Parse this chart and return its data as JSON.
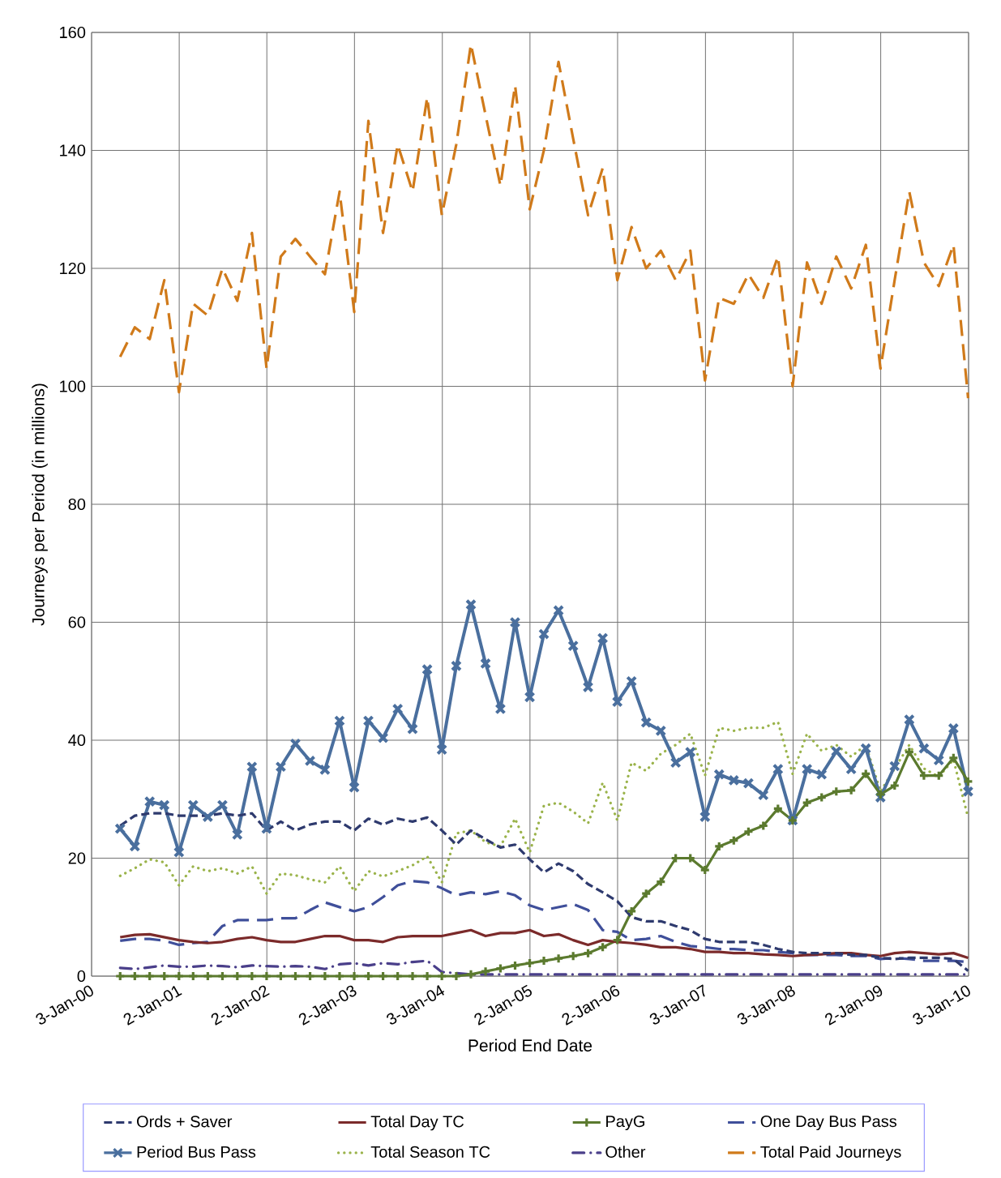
{
  "chart_data": {
    "type": "line",
    "xlabel": "Period End Date",
    "ylabel": "Journeys per Period (in millions)",
    "x": [
      "2000-05",
      "2000-07",
      "2000-09",
      "2000-11",
      "2001-01",
      "2001-03",
      "2001-05",
      "2001-07",
      "2001-09",
      "2001-11",
      "2002-01",
      "2002-03",
      "2002-05",
      "2002-07",
      "2002-09",
      "2002-11",
      "2003-01",
      "2003-03",
      "2003-05",
      "2003-07",
      "2003-09",
      "2003-11",
      "2004-01",
      "2004-03",
      "2004-05",
      "2004-07",
      "2004-09",
      "2004-11",
      "2005-01",
      "2005-03",
      "2005-05",
      "2005-07",
      "2005-09",
      "2005-11",
      "2006-01",
      "2006-03",
      "2006-05",
      "2006-07",
      "2006-09",
      "2006-11",
      "2007-01",
      "2007-03",
      "2007-05",
      "2007-07",
      "2007-09",
      "2007-11",
      "2008-01",
      "2008-03",
      "2008-05",
      "2008-07",
      "2008-09",
      "2008-11",
      "2009-01",
      "2009-03",
      "2009-05",
      "2009-07",
      "2009-09",
      "2009-11",
      "2010-01"
    ],
    "xlim": [
      "2000-01-03",
      "2010-01-03"
    ],
    "xticks": [
      {
        "value": "2000-01-03",
        "label": "3-Jan-00"
      },
      {
        "value": "2001-01-02",
        "label": "2-Jan-01"
      },
      {
        "value": "2002-01-02",
        "label": "2-Jan-02"
      },
      {
        "value": "2003-01-02",
        "label": "2-Jan-03"
      },
      {
        "value": "2004-01-03",
        "label": "3-Jan-04"
      },
      {
        "value": "2005-01-02",
        "label": "2-Jan-05"
      },
      {
        "value": "2006-01-02",
        "label": "2-Jan-06"
      },
      {
        "value": "2007-01-03",
        "label": "3-Jan-07"
      },
      {
        "value": "2008-01-03",
        "label": "3-Jan-08"
      },
      {
        "value": "2009-01-02",
        "label": "2-Jan-09"
      },
      {
        "value": "2010-01-03",
        "label": "3-Jan-10"
      }
    ],
    "ylim": [
      0,
      160
    ],
    "yticks": [
      0,
      20,
      40,
      60,
      80,
      100,
      120,
      140,
      160
    ],
    "grid": true,
    "legend": "bottom",
    "series": [
      {
        "name": "Ords + Saver",
        "color": "#2e3a6e",
        "line_style": "dashed",
        "marker": "none",
        "values": [
          25.5,
          27.2,
          27.6,
          27.6,
          27.2,
          27.2,
          27.2,
          27.6,
          27.2,
          27.6,
          24.7,
          26.2,
          24.7,
          25.7,
          26.2,
          26.2,
          24.7,
          26.7,
          25.7,
          26.7,
          26.2,
          26.9,
          24.7,
          22.3,
          24.7,
          23.2,
          21.8,
          22.3,
          19.8,
          17.6,
          19.1,
          17.8,
          15.6,
          14.2,
          12.7,
          10,
          9.3,
          9.3,
          8.5,
          7.8,
          6.3,
          5.8,
          5.8,
          5.8,
          5.3,
          4.6,
          4.1,
          3.9,
          3.9,
          3.9,
          3.6,
          3.6,
          3.1,
          2.9,
          3.1,
          3.1,
          3.1,
          2.9,
          0.9
        ]
      },
      {
        "name": "Total Day TC",
        "color": "#7b2a2a",
        "line_style": "solid",
        "marker": "none",
        "values": [
          6.6,
          7,
          7.1,
          6.6,
          6.1,
          5.8,
          5.6,
          5.8,
          6.3,
          6.6,
          6.1,
          5.8,
          5.8,
          6.3,
          6.8,
          6.8,
          6.1,
          6.1,
          5.8,
          6.6,
          6.8,
          6.8,
          6.8,
          7.3,
          7.8,
          6.8,
          7.3,
          7.3,
          7.8,
          6.8,
          7.1,
          6.1,
          5.3,
          6.1,
          5.8,
          5.6,
          5.3,
          4.9,
          4.9,
          4.6,
          4.1,
          4.1,
          3.9,
          3.9,
          3.7,
          3.6,
          3.4,
          3.6,
          3.7,
          3.9,
          3.9,
          3.6,
          3.4,
          3.9,
          4.1,
          3.9,
          3.7,
          3.9,
          3.1
        ]
      },
      {
        "name": "PayG",
        "color": "#5b7a2e",
        "line_style": "solid",
        "marker": "plus",
        "values": [
          0,
          0,
          0,
          0,
          0,
          0,
          0,
          0,
          0,
          0,
          0,
          0,
          0,
          0,
          0,
          0,
          0,
          0,
          0,
          0,
          0,
          0,
          0,
          0,
          0.3,
          0.8,
          1.3,
          1.8,
          2.2,
          2.6,
          3,
          3.4,
          3.9,
          4.9,
          6.1,
          11,
          14,
          16,
          20,
          20,
          18,
          22,
          23,
          24.5,
          25.5,
          28.4,
          26.4,
          29.4,
          30.3,
          31.3,
          31.5,
          34.3,
          30.8,
          32.3,
          38,
          34,
          34,
          37,
          33
        ]
      },
      {
        "name": "One Day Bus Pass",
        "color": "#3f4f9a",
        "line_style": "long dashed",
        "marker": "none",
        "values": [
          6,
          6.3,
          6.3,
          6,
          5.3,
          5.6,
          5.8,
          8.5,
          9.5,
          9.5,
          9.5,
          9.8,
          9.8,
          11.2,
          12.5,
          11.7,
          11,
          11.7,
          13.4,
          15.4,
          16.1,
          15.9,
          14.9,
          13.7,
          14.2,
          13.9,
          14.4,
          13.7,
          12,
          11.2,
          11.7,
          12.2,
          11.2,
          7.8,
          7.5,
          6.1,
          6.3,
          6.8,
          5.8,
          5.1,
          4.9,
          4.6,
          4.6,
          4.4,
          4.4,
          4.1,
          3.9,
          3.6,
          3.6,
          3.6,
          3.4,
          3.4,
          2.9,
          3.1,
          2.9,
          2.6,
          2.6,
          2.6,
          2.4
        ]
      },
      {
        "name": "Period Bus Pass",
        "color": "#4a6f9e",
        "line_style": "solid",
        "marker": "cross",
        "values": [
          25,
          22,
          29.6,
          29,
          21,
          29,
          27,
          29,
          24,
          35.5,
          25,
          35.5,
          39.4,
          36.5,
          35,
          43.3,
          32,
          43.3,
          40.4,
          45.3,
          41.9,
          52,
          38.4,
          52.6,
          63,
          53,
          45.3,
          60,
          47.3,
          58,
          62,
          56,
          49,
          57.3,
          46.5,
          50,
          43,
          41.6,
          36.2,
          38,
          27,
          34.2,
          33.2,
          32.7,
          30.7,
          35.1,
          26.4,
          35.1,
          34.2,
          38.1,
          35.1,
          38.6,
          30.3,
          35.6,
          43.5,
          38.6,
          36.6,
          42,
          31.3
        ]
      },
      {
        "name": "Total Season TC",
        "color": "#9ab34a",
        "line_style": "dotted",
        "marker": "none",
        "values": [
          17,
          18.3,
          19.8,
          19.3,
          15.4,
          18.6,
          17.8,
          18.3,
          17.4,
          18.6,
          14,
          17.4,
          17.1,
          16.4,
          15.9,
          18.6,
          14.4,
          17.8,
          16.9,
          17.8,
          18.8,
          20.3,
          15.9,
          24.2,
          24.7,
          22.7,
          22,
          26.7,
          21,
          28.9,
          29.4,
          27.9,
          25.9,
          32.8,
          26.4,
          36.2,
          34.8,
          37.7,
          39.2,
          41.1,
          34,
          42.1,
          41.6,
          42.1,
          42.1,
          43.1,
          34.3,
          41.1,
          38.2,
          39.2,
          37.2,
          39.2,
          31.3,
          35.2,
          39.2,
          35.2,
          33.8,
          36.7,
          26.9
        ]
      },
      {
        "name": "Other",
        "color": "#4a3f8a",
        "line_style": "dashdot",
        "marker": "none",
        "values": [
          1.4,
          1.2,
          1.5,
          1.8,
          1.6,
          1.6,
          1.8,
          1.7,
          1.5,
          1.8,
          1.7,
          1.6,
          1.7,
          1.6,
          1.2,
          2,
          2.2,
          1.8,
          2.2,
          2,
          2.4,
          2.6,
          0.7,
          0.5,
          0.3,
          0.3,
          0.3,
          0.3,
          0.3,
          0.3,
          0.3,
          0.3,
          0.3,
          0.3,
          0.3,
          0.3,
          0.3,
          0.3,
          0.3,
          0.3,
          0.3,
          0.3,
          0.3,
          0.3,
          0.3,
          0.3,
          0.3,
          0.3,
          0.3,
          0.3,
          0.3,
          0.3,
          0.3,
          0.3,
          0.3,
          0.3,
          0.3,
          0.3,
          0.3
        ]
      },
      {
        "name": "Total Paid Journeys",
        "color": "#d07a1a",
        "line_style": "long dashed",
        "marker": "none",
        "values": [
          105,
          110,
          108,
          118,
          99,
          114,
          112,
          120,
          114.5,
          126,
          103,
          122,
          125,
          122,
          119,
          133,
          112.6,
          145,
          126,
          141,
          133,
          149,
          129,
          141,
          158,
          146,
          134,
          151,
          130,
          140,
          155,
          142,
          129,
          137,
          118,
          127,
          120,
          123,
          118,
          123,
          101,
          115,
          114,
          119,
          115,
          122,
          100,
          121,
          114,
          122,
          116.6,
          124,
          103,
          118,
          133,
          121,
          117,
          124,
          98
        ]
      }
    ]
  }
}
